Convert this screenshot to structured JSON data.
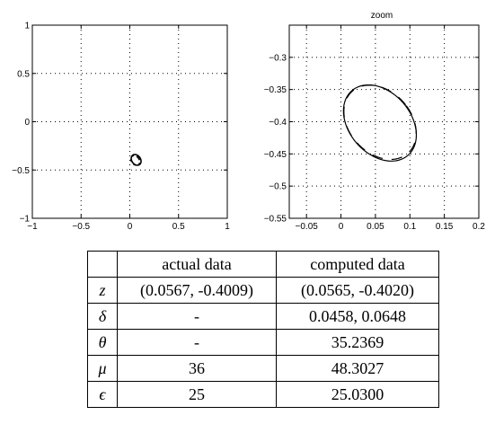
{
  "chart_data": [
    {
      "type": "line",
      "title": "",
      "xlabel": "",
      "ylabel": "",
      "xlim": [
        -1,
        1
      ],
      "ylim": [
        -1,
        1
      ],
      "xticks": [
        -1,
        -0.5,
        0,
        0.5,
        1
      ],
      "yticks": [
        -1,
        -0.5,
        0,
        0.5,
        1
      ],
      "xtick_labels": [
        "−1",
        "−0.5",
        "0",
        "0.5",
        "1"
      ],
      "ytick_labels": [
        "−1",
        "−0.5",
        "0",
        "0.5",
        "1"
      ],
      "grid": true,
      "series": [
        {
          "cx": 0.065,
          "cy": -0.395,
          "rx": 0.045,
          "ry": 0.06,
          "angle_deg": 35,
          "dashed": false
        },
        {
          "cx": 0.057,
          "cy": -0.401,
          "rx": 0.04,
          "ry": 0.055,
          "angle_deg": 36,
          "dashed": true
        }
      ]
    },
    {
      "type": "line",
      "title": "zoom",
      "xlabel": "",
      "ylabel": "",
      "xlim": [
        -0.075,
        0.2
      ],
      "ylim": [
        -0.55,
        -0.25
      ],
      "xticks": [
        -0.05,
        0,
        0.05,
        0.1,
        0.15,
        0.2
      ],
      "yticks": [
        -0.55,
        -0.5,
        -0.45,
        -0.4,
        -0.35,
        -0.3
      ],
      "xtick_labels": [
        "−0.05",
        "0",
        "0.05",
        "0.1",
        "0.15",
        "0.2"
      ],
      "ytick_labels": [
        "−0.55",
        "−0.5",
        "−0.45",
        "−0.4",
        "−0.35",
        "−0.3"
      ],
      "grid": true,
      "series": [
        {
          "cx": 0.0565,
          "cy": -0.402,
          "rx": 0.0458,
          "ry": 0.0648,
          "angle_deg": 35.2,
          "dashed": false
        },
        {
          "cx": 0.0567,
          "cy": -0.4009,
          "rx": 0.046,
          "ry": 0.063,
          "angle_deg": 36,
          "dashed": true
        }
      ]
    }
  ],
  "table": {
    "header": [
      "",
      "actual data",
      "computed data"
    ],
    "rows": [
      {
        "symbol": "z",
        "actual": "(0.0567, -0.4009)",
        "computed": "(0.0565, -0.4020)"
      },
      {
        "symbol": "δ",
        "actual": "-",
        "computed": "0.0458, 0.0648"
      },
      {
        "symbol": "θ",
        "actual": "-",
        "computed": "35.2369"
      },
      {
        "symbol": "μ",
        "actual": "36",
        "computed": "48.3027"
      },
      {
        "symbol": "ϵ",
        "actual": "25",
        "computed": "25.0300"
      }
    ]
  }
}
